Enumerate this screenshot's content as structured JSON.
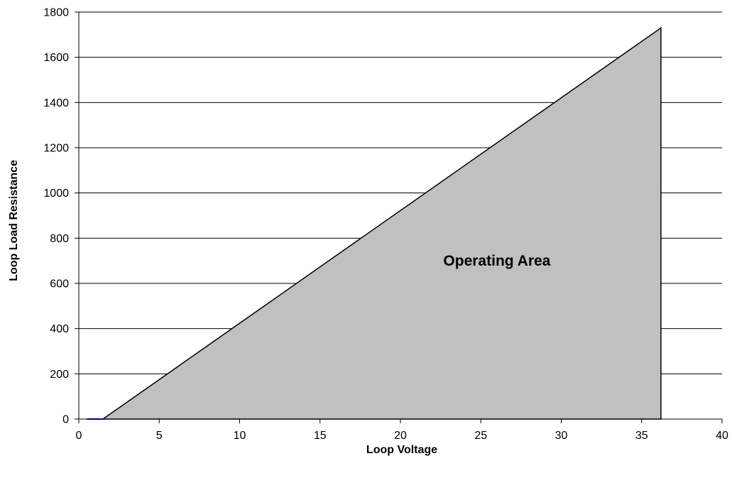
{
  "chart_data": {
    "type": "area",
    "title": "",
    "xlabel": "Loop Voltage",
    "ylabel": "Loop Load Resistance",
    "xlim": [
      0,
      40
    ],
    "ylim": [
      0,
      1800
    ],
    "xticks": [
      0,
      5,
      10,
      15,
      20,
      25,
      30,
      35,
      40
    ],
    "yticks": [
      0,
      200,
      400,
      600,
      800,
      1000,
      1200,
      1400,
      1600,
      1800
    ],
    "grid": "horizontal",
    "series": [
      {
        "x": [
          1.5,
          36.2,
          36.2,
          1.5
        ],
        "y": [
          0,
          1730,
          0,
          0
        ],
        "fill": "#c0c0c0",
        "stroke": "#000000"
      }
    ],
    "annotations": [
      {
        "text": "Operating Area",
        "x": 26,
        "y": 700
      }
    ]
  }
}
